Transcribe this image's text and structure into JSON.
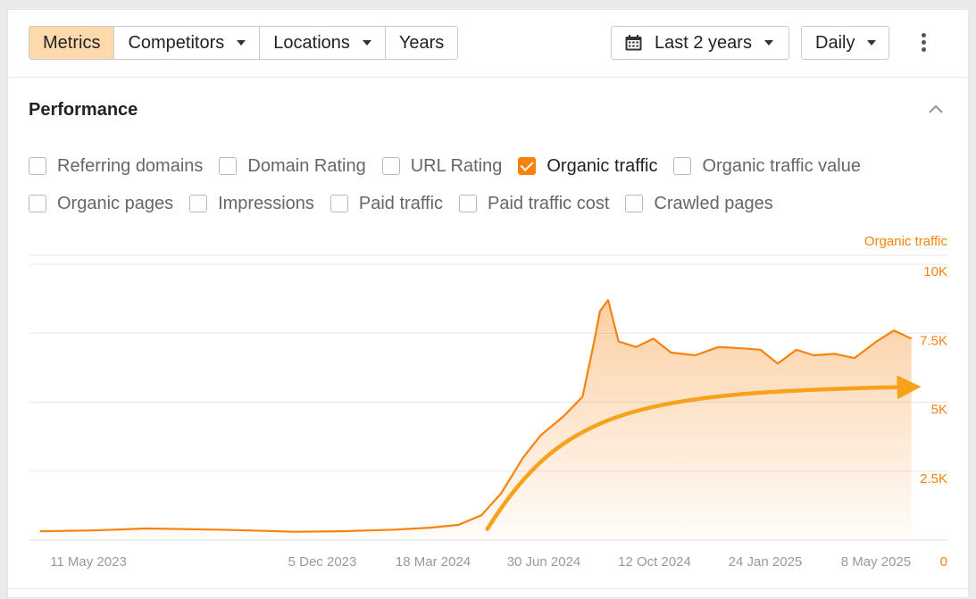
{
  "toolbar": {
    "tabs": [
      {
        "label": "Metrics",
        "active": true
      },
      {
        "label": "Competitors",
        "dropdown": true
      },
      {
        "label": "Locations",
        "dropdown": true
      },
      {
        "label": "Years"
      }
    ],
    "date_range": "Last 2 years",
    "granularity": "Daily"
  },
  "panel": {
    "title": "Performance",
    "metrics_row1": [
      {
        "label": "Referring domains",
        "checked": false
      },
      {
        "label": "Domain Rating",
        "checked": false
      },
      {
        "label": "URL Rating",
        "checked": false
      },
      {
        "label": "Organic traffic",
        "checked": true
      },
      {
        "label": "Organic traffic value",
        "checked": false
      }
    ],
    "metrics_row2": [
      {
        "label": "Organic pages",
        "checked": false
      },
      {
        "label": "Impressions",
        "checked": false
      },
      {
        "label": "Paid traffic",
        "checked": false
      },
      {
        "label": "Paid traffic cost",
        "checked": false
      },
      {
        "label": "Crawled pages",
        "checked": false
      }
    ]
  },
  "colors": {
    "accent": "#f7820e",
    "active_tab": "#fdd9ac",
    "grid": "#e6e7e9",
    "tick": "#999999"
  },
  "chart_data": {
    "type": "area",
    "series": [
      {
        "name": "Organic traffic",
        "x": [
          "2023-05-01",
          "2023-06-15",
          "2023-08-01",
          "2023-10-01",
          "2023-11-15",
          "2023-12-05",
          "2024-01-15",
          "2024-03-01",
          "2024-04-01",
          "2024-04-25",
          "2024-05-15",
          "2024-06-01",
          "2024-06-20",
          "2024-07-05",
          "2024-07-25",
          "2024-08-10",
          "2024-08-20",
          "2024-08-25",
          "2024-09-01",
          "2024-09-10",
          "2024-09-25",
          "2024-10-10",
          "2024-10-25",
          "2024-11-15",
          "2024-12-05",
          "2024-12-25",
          "2025-01-10",
          "2025-01-25",
          "2025-02-10",
          "2025-02-25",
          "2025-03-15",
          "2025-04-01",
          "2025-04-20",
          "2025-05-05",
          "2025-05-20"
        ],
        "values": [
          320,
          350,
          420,
          380,
          330,
          300,
          320,
          380,
          450,
          550,
          900,
          1700,
          3000,
          3800,
          4500,
          5200,
          7200,
          8300,
          8700,
          7200,
          7000,
          7300,
          6800,
          6700,
          7000,
          6950,
          6900,
          6400,
          6900,
          6700,
          6750,
          6600,
          7200,
          7600,
          7300
        ]
      }
    ],
    "trend_arrow": {
      "x_start": "2024-05-20",
      "y_start": 400,
      "x_end": "2025-05-18",
      "y_end": 5550
    },
    "x_ticks": [
      "11 May 2023",
      "5 Dec 2023",
      "18 Mar 2024",
      "30 Jun 2024",
      "12 Oct 2024",
      "24 Jan 2025",
      "8 May 2025"
    ],
    "y_ticks": [
      "0",
      "2.5K",
      "5K",
      "7.5K",
      "10K"
    ],
    "ylabel": "Organic traffic",
    "ylim": [
      0,
      10000
    ],
    "grid": true
  }
}
